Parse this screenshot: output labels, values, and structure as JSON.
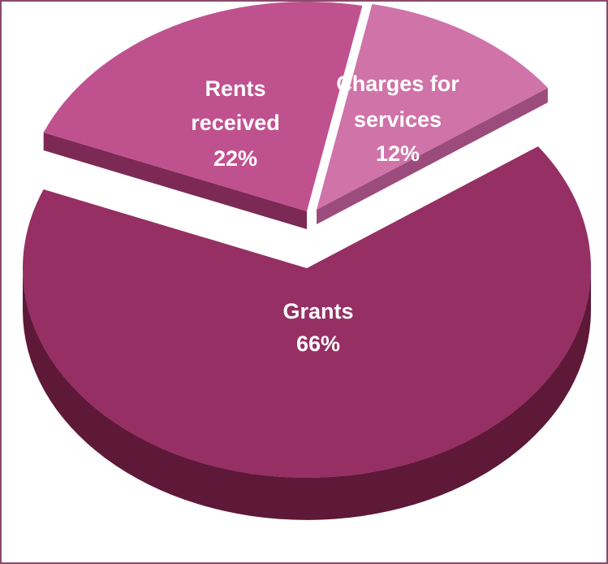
{
  "chart_data": {
    "type": "pie",
    "three_d": true,
    "exploded": true,
    "title": "",
    "slices": [
      {
        "label_lines": [
          "Grants"
        ],
        "percent_label": "66%",
        "value": 66,
        "color": "#952f64"
      },
      {
        "label_lines": [
          "Rents",
          "received"
        ],
        "percent_label": "22%",
        "value": 22,
        "color": "#c0518f"
      },
      {
        "label_lines": [
          "Charges for",
          "services"
        ],
        "percent_label": "12%",
        "value": 12,
        "color": "#cf73a9"
      }
    ],
    "colors": {
      "grants_side": "#5e1838",
      "rents_side": "#7c2a55",
      "charges_side": "#9c4c7c",
      "border": "#8a4a6a"
    }
  }
}
